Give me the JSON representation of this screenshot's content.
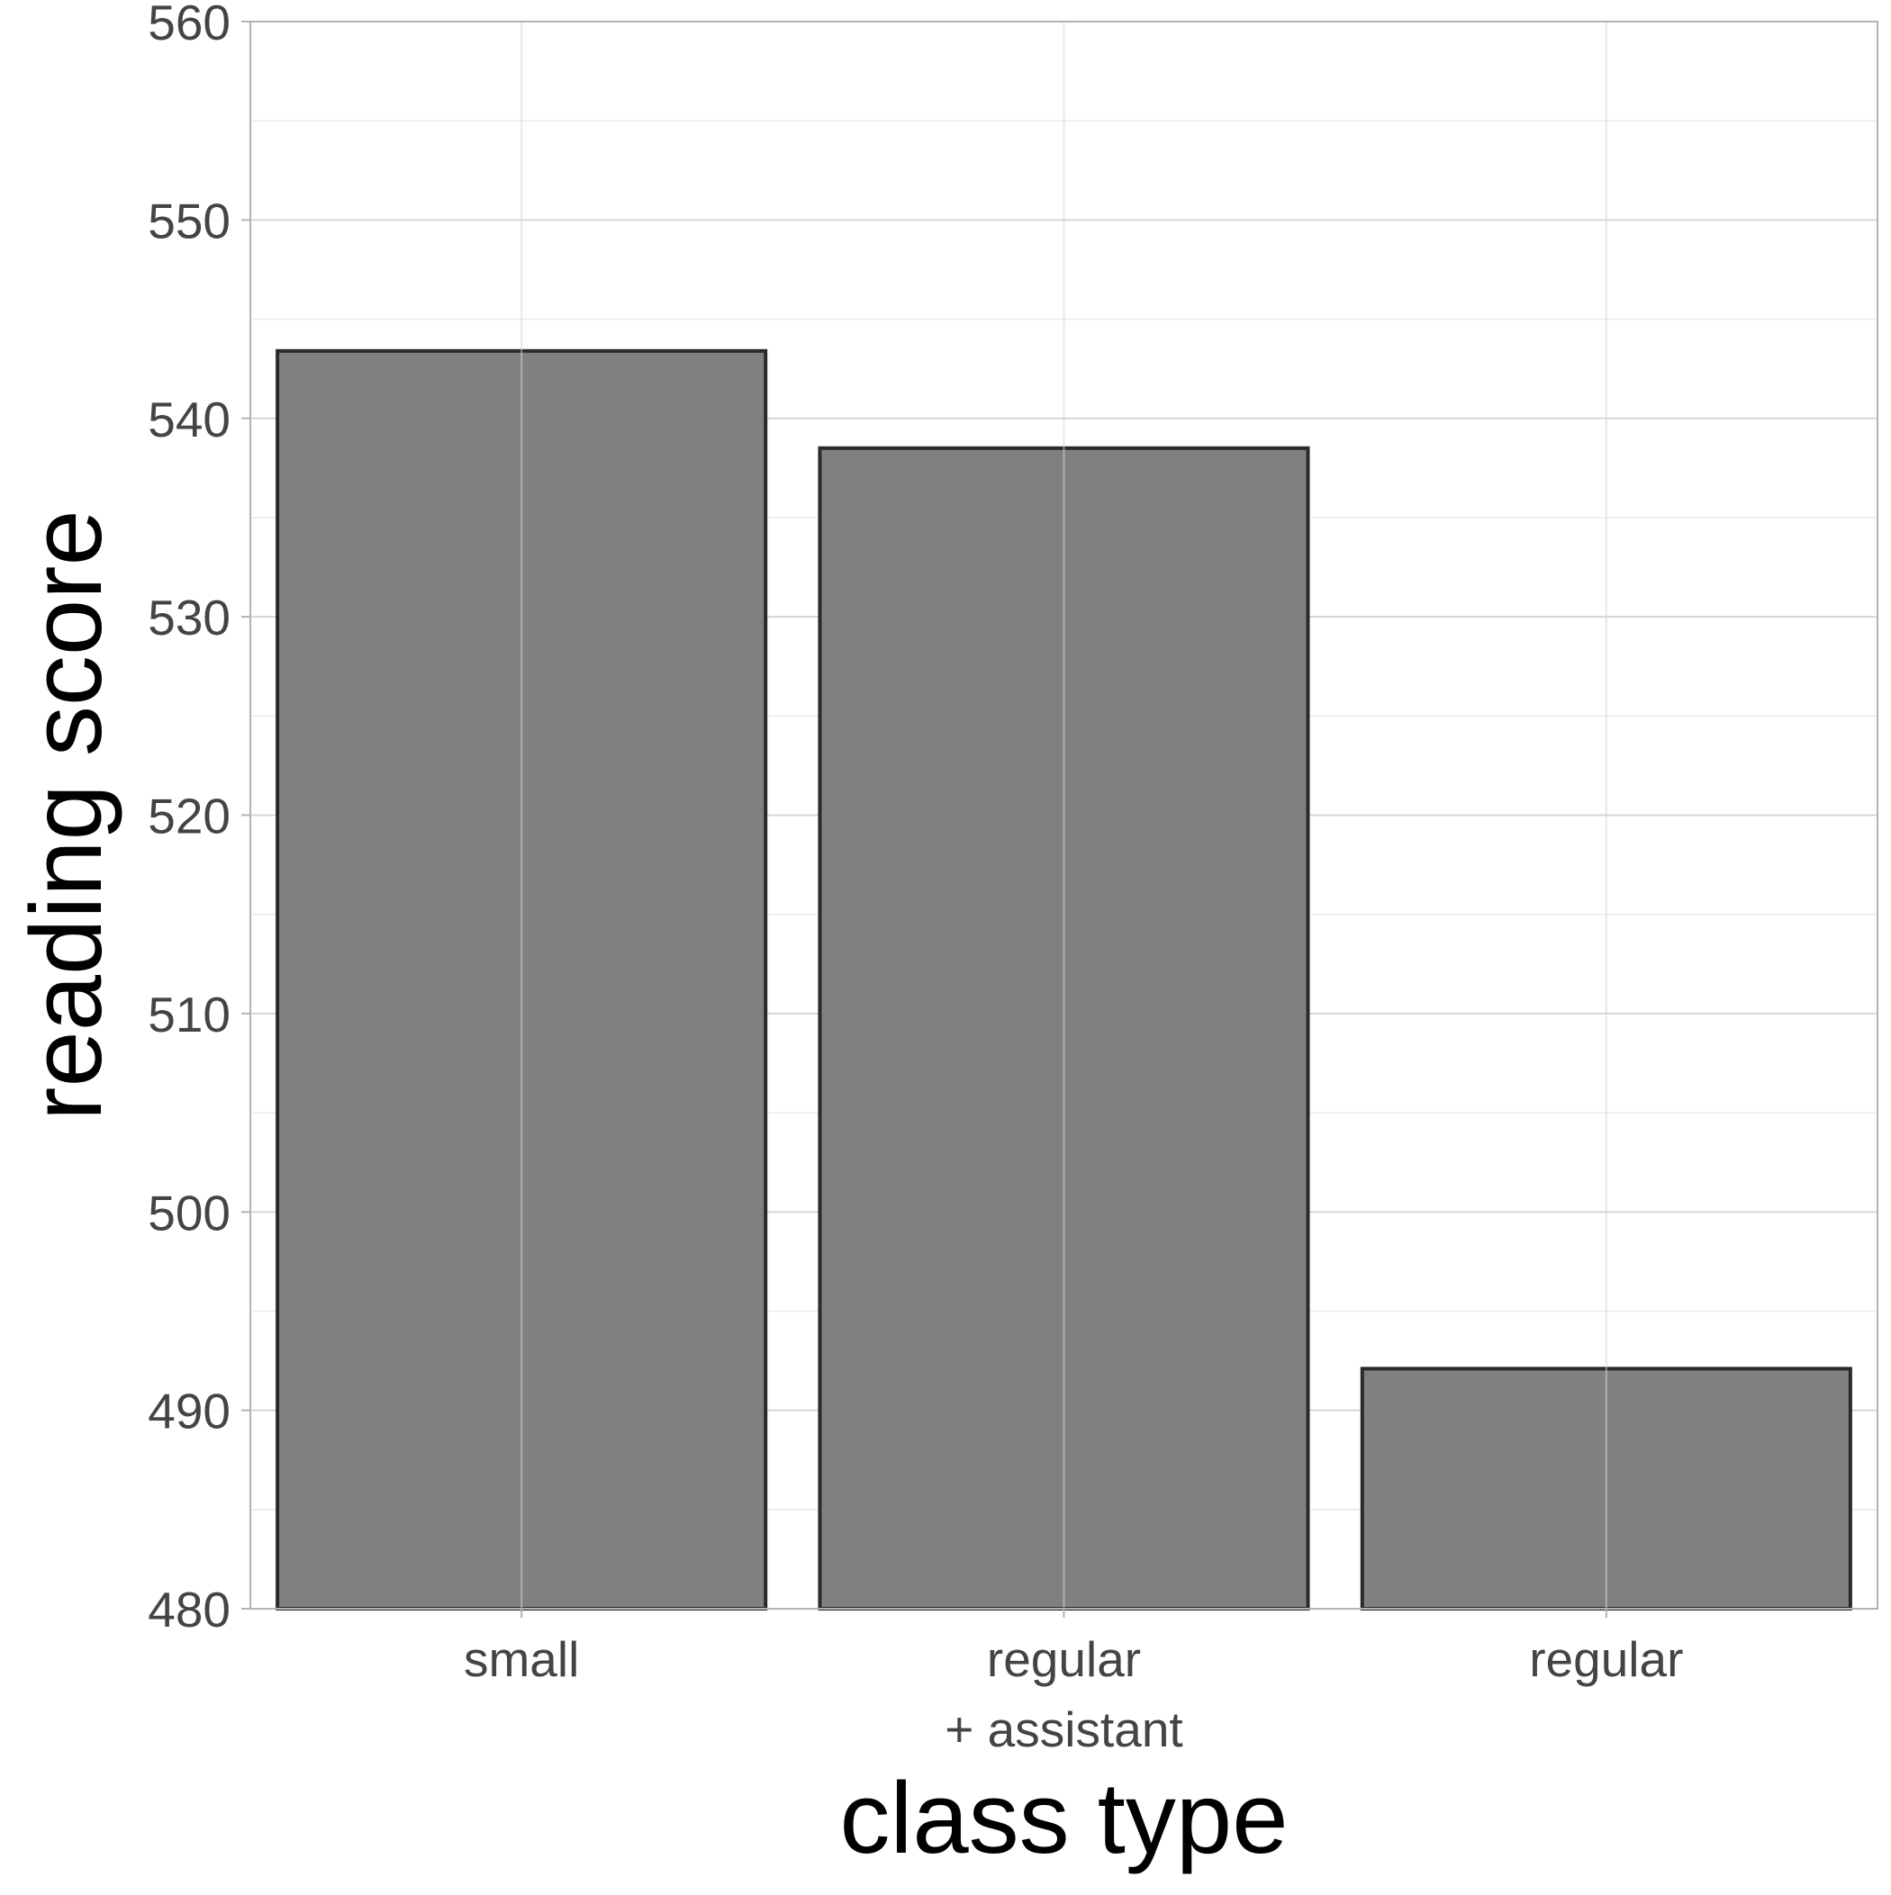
{
  "chart_data": {
    "type": "bar",
    "title": "",
    "xlabel": "class type",
    "ylabel": "reading score",
    "categories": [
      [
        "small"
      ],
      [
        "regular",
        "+ assistant"
      ],
      [
        "regular"
      ]
    ],
    "values": [
      543.4,
      538.5,
      492.1
    ],
    "ylim": [
      480,
      560
    ],
    "yticks": [
      "480",
      "490",
      "500",
      "510",
      "520",
      "530",
      "540",
      "550",
      "560"
    ],
    "grid": true,
    "legend": "none",
    "colors": {
      "bar_fill": "#808080",
      "bar_stroke": "#2a2a2a",
      "panel_border": "#b3b3b3",
      "tick_text": "#444444",
      "title_text": "#000000"
    }
  }
}
